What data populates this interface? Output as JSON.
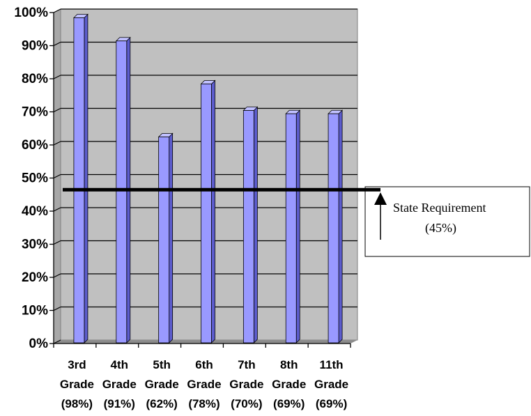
{
  "chart_data": {
    "type": "bar",
    "categories": [
      [
        "3rd",
        "Grade",
        "(98%)"
      ],
      [
        "4th",
        "Grade",
        "(91%)"
      ],
      [
        "5th",
        "Grade",
        "(62%)"
      ],
      [
        "6th",
        "Grade",
        "(78%)"
      ],
      [
        "7th",
        "Grade",
        "(70%)"
      ],
      [
        "8th",
        "Grade",
        "(69%)"
      ],
      [
        "11th",
        "Grade",
        "(69%)"
      ]
    ],
    "values": [
      98,
      91,
      62,
      78,
      70,
      69,
      69
    ],
    "ylim": [
      0,
      100
    ],
    "yticks": [
      0,
      10,
      20,
      30,
      40,
      50,
      60,
      70,
      80,
      90,
      100
    ],
    "ytick_labels": [
      "0%",
      "10%",
      "20%",
      "30%",
      "40%",
      "50%",
      "60%",
      "70%",
      "80%",
      "90%",
      "100%"
    ],
    "grid": true,
    "title": "",
    "xlabel": "",
    "ylabel": "",
    "threshold": {
      "value": 45
    },
    "annotation": {
      "line1": "State Requirement",
      "line2": "(45%)"
    },
    "colors": {
      "bar_front": "#9999ff",
      "bar_side": "#5c5ccc",
      "bar_top": "#c0c0ff",
      "plot_bg": "#c0c0c0",
      "wall_left": "#a8a8a8",
      "floor": "#8c8c8c",
      "grid": "#000000",
      "threshold_line": "#000000"
    }
  }
}
